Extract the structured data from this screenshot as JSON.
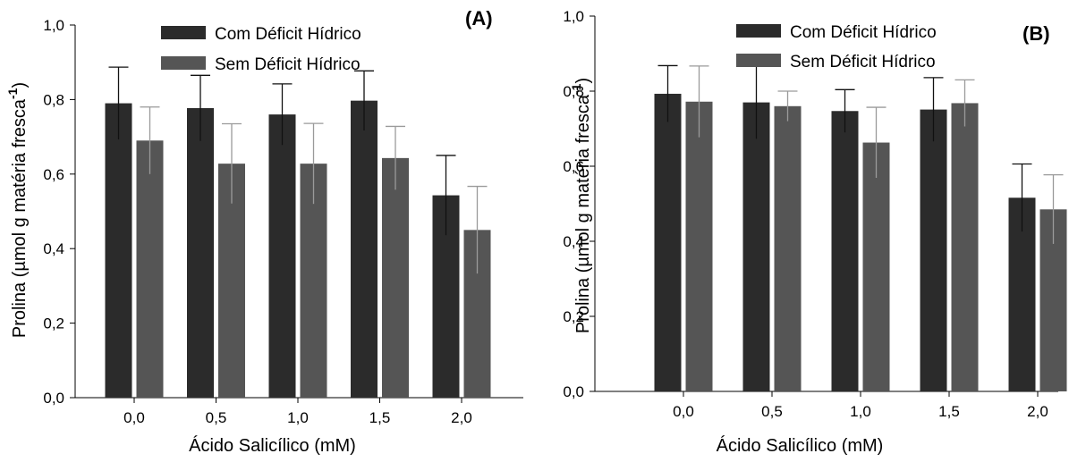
{
  "chart_data": [
    {
      "type": "bar",
      "panel_label": "(A)",
      "categories": [
        "0,0",
        "0,5",
        "1,0",
        "1,5",
        "2,0"
      ],
      "series": [
        {
          "name": "Com Déficit Hídrico",
          "color": "#2b2b2b",
          "values": [
            0.79,
            0.777,
            0.76,
            0.797,
            0.543
          ],
          "errors": [
            0.097,
            0.088,
            0.082,
            0.08,
            0.107
          ]
        },
        {
          "name": "Sem Déficit Hídrico",
          "color": "#555555",
          "values": [
            0.69,
            0.628,
            0.628,
            0.643,
            0.45
          ],
          "errors": [
            0.09,
            0.107,
            0.108,
            0.085,
            0.117
          ]
        }
      ],
      "ylim": [
        0,
        1.0
      ],
      "yticks": [
        "0,0",
        "0,2",
        "0,4",
        "0,6",
        "0,8",
        "1,0"
      ],
      "xlabel": "Ácido Salicílico (mM)",
      "ylabel_main": "Prolina (µmol g matéria fresca",
      "ylabel_sup": "-1",
      "ylabel_close": ")",
      "grid": false,
      "legend_position": "top-center"
    },
    {
      "type": "bar",
      "panel_label": "(B)",
      "categories": [
        "0,0",
        "0,5",
        "1,0",
        "1,5",
        "2,0"
      ],
      "series": [
        {
          "name": "Com Déficit Hídrico",
          "color": "#2b2b2b",
          "values": [
            0.793,
            0.77,
            0.747,
            0.751,
            0.516
          ],
          "errors": [
            0.075,
            0.097,
            0.057,
            0.085,
            0.09
          ]
        },
        {
          "name": "Sem Déficit Hídrico",
          "color": "#555555",
          "values": [
            0.772,
            0.76,
            0.663,
            0.768,
            0.485
          ],
          "errors": [
            0.095,
            0.04,
            0.094,
            0.062,
            0.092
          ]
        }
      ],
      "ylim": [
        0,
        1.0
      ],
      "yticks": [
        "0,0",
        "0,2",
        "0,4",
        "0,6",
        "0,8",
        "1,0"
      ],
      "xlabel": "Ácido Salicílico (mM)",
      "ylabel_main": "Prolina (µmol g matéria fresca",
      "ylabel_sup": "-1",
      "ylabel_close": ")",
      "grid": false,
      "legend_position": "top-center"
    }
  ]
}
